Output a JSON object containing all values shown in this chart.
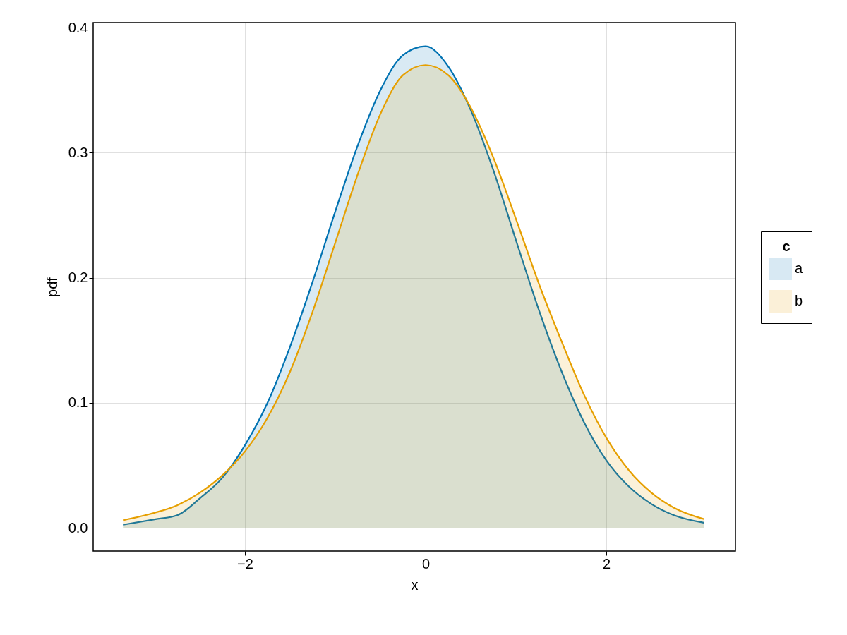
{
  "chart_data": {
    "type": "area",
    "xlabel": "x",
    "ylabel": "pdf",
    "legend_title": "c",
    "legend": "right",
    "grid": true,
    "xlim": [
      -3.68,
      3.43
    ],
    "ylim": [
      -0.0186,
      0.404
    ],
    "xticks": [
      {
        "value": -2,
        "label": "−2"
      },
      0,
      2
    ],
    "yticks": [
      {
        "value": 0,
        "label": "0.0"
      },
      0.1,
      0.2,
      0.3,
      0.4
    ],
    "x": [
      -3.35,
      -3.0,
      -2.75,
      -2.5,
      -2.25,
      -2.0,
      -1.75,
      -1.5,
      -1.25,
      -1.0,
      -0.75,
      -0.5,
      -0.25,
      0,
      0.25,
      0.5,
      0.75,
      1.0,
      1.25,
      1.5,
      1.75,
      2.0,
      2.25,
      2.5,
      2.75,
      3.08
    ],
    "series": [
      {
        "name": "a",
        "color": "#0072b2",
        "values": [
          0.0024,
          0.0067,
          0.01,
          0.0235,
          0.04,
          0.066,
          0.1,
          0.145,
          0.197,
          0.253,
          0.306,
          0.35,
          0.378,
          0.385,
          0.369,
          0.334,
          0.286,
          0.23,
          0.175,
          0.126,
          0.085,
          0.054,
          0.033,
          0.019,
          0.01,
          0.004
        ]
      },
      {
        "name": "b",
        "color": "#e69f00",
        "values": [
          0.006,
          0.012,
          0.018,
          0.028,
          0.042,
          0.061,
          0.088,
          0.125,
          0.173,
          0.228,
          0.283,
          0.331,
          0.362,
          0.37,
          0.362,
          0.336,
          0.296,
          0.247,
          0.196,
          0.15,
          0.107,
          0.072,
          0.046,
          0.028,
          0.016,
          0.007
        ]
      }
    ]
  }
}
